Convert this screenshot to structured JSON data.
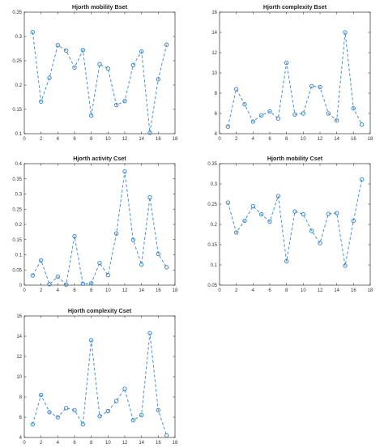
{
  "chart_data": [
    {
      "type": "line",
      "title": "Hjorth mobility Bset",
      "xlim": [
        0,
        18
      ],
      "ylim": [
        0.1,
        0.35
      ],
      "xticks": [
        0,
        2,
        4,
        6,
        8,
        10,
        12,
        14,
        16,
        18
      ],
      "yticks": [
        0.1,
        0.15,
        0.2,
        0.25,
        0.3,
        0.35
      ],
      "x": [
        1,
        2,
        3,
        4,
        5,
        6,
        7,
        8,
        9,
        10,
        11,
        12,
        13,
        14,
        15,
        16,
        17
      ],
      "series": [
        {
          "values": [
            0.309,
            0.166,
            0.215,
            0.282,
            0.271,
            0.236,
            0.272,
            0.137,
            0.243,
            0.234,
            0.159,
            0.167,
            0.241,
            0.269,
            0.102,
            0.212,
            0.283
          ]
        }
      ],
      "grid": false
    },
    {
      "type": "line",
      "title": "Hjorth complexity Bset",
      "xlim": [
        0,
        18
      ],
      "ylim": [
        4,
        16
      ],
      "xticks": [
        0,
        2,
        4,
        6,
        8,
        10,
        12,
        14,
        16,
        18
      ],
      "yticks": [
        4,
        6,
        8,
        10,
        12,
        14,
        16
      ],
      "x": [
        1,
        2,
        3,
        4,
        5,
        6,
        7,
        8,
        9,
        10,
        11,
        12,
        13,
        14,
        15,
        16,
        17
      ],
      "series": [
        {
          "values": [
            4.7,
            8.4,
            6.9,
            5.2,
            5.8,
            6.2,
            5.5,
            11.0,
            5.9,
            6.0,
            8.7,
            8.6,
            6.0,
            5.3,
            14.0,
            6.5,
            4.9
          ]
        }
      ],
      "grid": false
    },
    {
      "type": "line",
      "title": "Hjorth activity Cset",
      "xlim": [
        0,
        18
      ],
      "ylim": [
        0,
        0.4
      ],
      "xticks": [
        0,
        2,
        4,
        6,
        8,
        10,
        12,
        14,
        16,
        18
      ],
      "yticks": [
        0,
        0.05,
        0.1,
        0.15,
        0.2,
        0.25,
        0.3,
        0.35,
        0.4
      ],
      "x": [
        1,
        2,
        3,
        4,
        5,
        6,
        7,
        8,
        9,
        10,
        11,
        12,
        13,
        14,
        15,
        16,
        17
      ],
      "series": [
        {
          "values": [
            0.032,
            0.082,
            0.003,
            0.028,
            0.002,
            0.161,
            0.005,
            0.006,
            0.073,
            0.033,
            0.17,
            0.374,
            0.149,
            0.068,
            0.289,
            0.103,
            0.059
          ]
        }
      ],
      "grid": false
    },
    {
      "type": "line",
      "title": "Hjorth mobility Cset",
      "xlim": [
        0,
        18
      ],
      "ylim": [
        0.05,
        0.35
      ],
      "xticks": [
        0,
        2,
        4,
        6,
        8,
        10,
        12,
        14,
        16,
        18
      ],
      "yticks": [
        0.05,
        0.1,
        0.15,
        0.2,
        0.25,
        0.3,
        0.35
      ],
      "x": [
        1,
        2,
        3,
        4,
        5,
        6,
        7,
        8,
        9,
        10,
        11,
        12,
        13,
        14,
        15,
        16,
        17
      ],
      "series": [
        {
          "values": [
            0.254,
            0.18,
            0.209,
            0.245,
            0.225,
            0.207,
            0.27,
            0.109,
            0.232,
            0.225,
            0.184,
            0.154,
            0.226,
            0.228,
            0.098,
            0.209,
            0.311
          ]
        }
      ],
      "grid": false
    },
    {
      "type": "line",
      "title": "Hjorth complexity Cset",
      "xlim": [
        0,
        18
      ],
      "ylim": [
        4,
        16
      ],
      "xticks": [
        0,
        2,
        4,
        6,
        8,
        10,
        12,
        14,
        16,
        18
      ],
      "yticks": [
        4,
        6,
        8,
        10,
        12,
        14,
        16
      ],
      "x": [
        1,
        2,
        3,
        4,
        5,
        6,
        7,
        8,
        9,
        10,
        11,
        12,
        13,
        14,
        15,
        16,
        17
      ],
      "series": [
        {
          "values": [
            5.3,
            8.2,
            6.5,
            6.0,
            6.9,
            6.7,
            5.3,
            13.6,
            6.1,
            6.6,
            7.6,
            8.8,
            5.7,
            6.2,
            14.3,
            6.7,
            4.2
          ]
        }
      ],
      "grid": false
    }
  ],
  "colors": {
    "line": "#4a90d9",
    "marker": "#2f7fc8",
    "axes": "#333333",
    "background": "#ffffff"
  }
}
